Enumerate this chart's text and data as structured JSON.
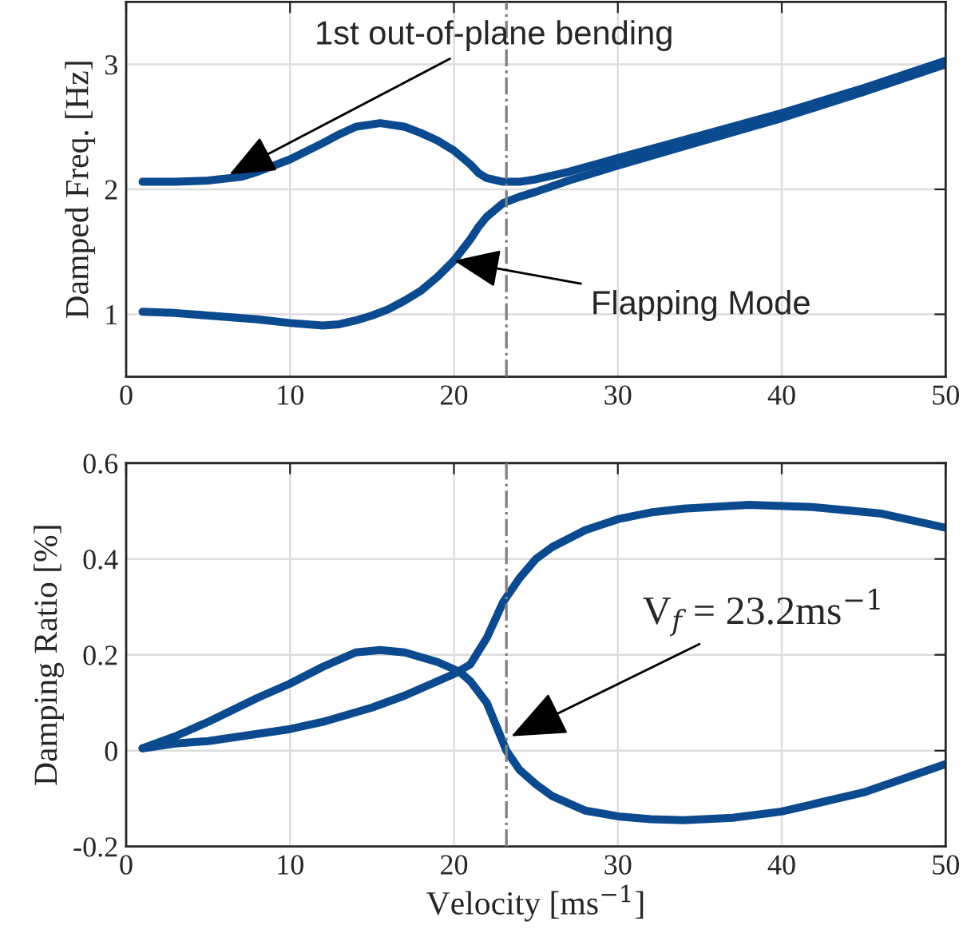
{
  "chart_data": [
    {
      "type": "line",
      "ylabel": "Damped Freq. [Hz]",
      "xlim": [
        0,
        50
      ],
      "ylim": [
        0.5,
        3.5
      ],
      "xticks": [
        0,
        10,
        20,
        30,
        40,
        50
      ],
      "yticks": [
        1,
        2,
        3
      ],
      "grid": true,
      "line_style": "solid",
      "marker": "none",
      "series": [
        {
          "color": "#0b4a8f",
          "x": [
            1,
            3,
            5,
            7,
            8,
            10,
            12,
            13,
            14,
            15.5,
            17,
            18,
            19,
            20,
            21,
            21.5,
            22,
            23,
            24,
            25,
            27,
            30,
            35,
            40,
            45,
            50
          ],
          "values": [
            2.06,
            2.06,
            2.07,
            2.1,
            2.14,
            2.24,
            2.37,
            2.44,
            2.5,
            2.53,
            2.5,
            2.45,
            2.39,
            2.31,
            2.2,
            2.13,
            2.09,
            2.06,
            2.06,
            2.08,
            2.14,
            2.25,
            2.43,
            2.61,
            2.81,
            3.03
          ]
        },
        {
          "color": "#0b4a8f",
          "x": [
            1,
            3,
            5,
            8,
            10,
            12,
            13,
            14,
            15,
            16,
            17,
            18,
            19,
            20,
            21,
            21.5,
            22,
            23,
            24,
            25,
            27,
            30,
            35,
            40,
            45,
            50
          ],
          "values": [
            1.02,
            1.01,
            0.99,
            0.96,
            0.93,
            0.91,
            0.92,
            0.95,
            0.99,
            1.04,
            1.11,
            1.19,
            1.3,
            1.43,
            1.6,
            1.7,
            1.78,
            1.89,
            1.94,
            1.98,
            2.07,
            2.19,
            2.38,
            2.57,
            2.78,
            3.0
          ]
        }
      ],
      "ref_lines": [
        {
          "axis": "x",
          "value": 23.2,
          "color": "#808080",
          "line_style": "dashdot"
        }
      ],
      "annotations": [
        {
          "text": "1st out-of-plane bending",
          "x": 6.3,
          "y": 2.12
        },
        {
          "text": "Flapping Mode",
          "x": 20,
          "y": 1.43
        }
      ]
    },
    {
      "type": "line",
      "xlabel": "Velocity [ms$^{−1}$]",
      "ylabel": "Damping Ratio [%]",
      "xlim": [
        0,
        50
      ],
      "ylim": [
        -0.2,
        0.6
      ],
      "xticks": [
        0,
        10,
        20,
        30,
        40,
        50
      ],
      "yticks": [
        -0.2,
        0,
        0.2,
        0.4,
        0.6
      ],
      "grid": true,
      "line_style": "solid",
      "marker": "none",
      "series": [
        {
          "color": "#0b4a8f",
          "x": [
            1,
            3,
            5,
            8,
            10,
            12,
            13,
            14,
            15.5,
            17,
            18,
            19,
            20,
            20.5,
            21,
            22,
            23.2,
            24,
            25,
            26,
            28,
            30,
            32,
            34,
            37,
            40,
            45,
            50
          ],
          "values": [
            0.005,
            0.03,
            0.06,
            0.11,
            0.14,
            0.175,
            0.19,
            0.205,
            0.21,
            0.205,
            0.195,
            0.185,
            0.17,
            0.16,
            0.145,
            0.1,
            0.0,
            -0.04,
            -0.07,
            -0.095,
            -0.125,
            -0.137,
            -0.143,
            -0.145,
            -0.14,
            -0.127,
            -0.087,
            -0.028
          ]
        },
        {
          "color": "#0b4a8f",
          "x": [
            1,
            3,
            5,
            8,
            10,
            12,
            13,
            15,
            17,
            18,
            19,
            20,
            20.5,
            21,
            22,
            23,
            24,
            25,
            26,
            28,
            30,
            32,
            34,
            38,
            42,
            46,
            50
          ],
          "values": [
            0.005,
            0.015,
            0.02,
            0.035,
            0.045,
            0.06,
            0.07,
            0.09,
            0.115,
            0.13,
            0.145,
            0.16,
            0.17,
            0.18,
            0.235,
            0.31,
            0.36,
            0.4,
            0.425,
            0.46,
            0.483,
            0.497,
            0.505,
            0.513,
            0.508,
            0.495,
            0.465
          ]
        }
      ],
      "ref_lines": [
        {
          "axis": "x",
          "value": 23.2,
          "color": "#808080",
          "line_style": "dashdot"
        }
      ],
      "annotations": [
        {
          "text": "V$_{f}$ = 23.2ms$^{−1}$",
          "x": 23.5,
          "y": 0.03
        }
      ]
    }
  ]
}
